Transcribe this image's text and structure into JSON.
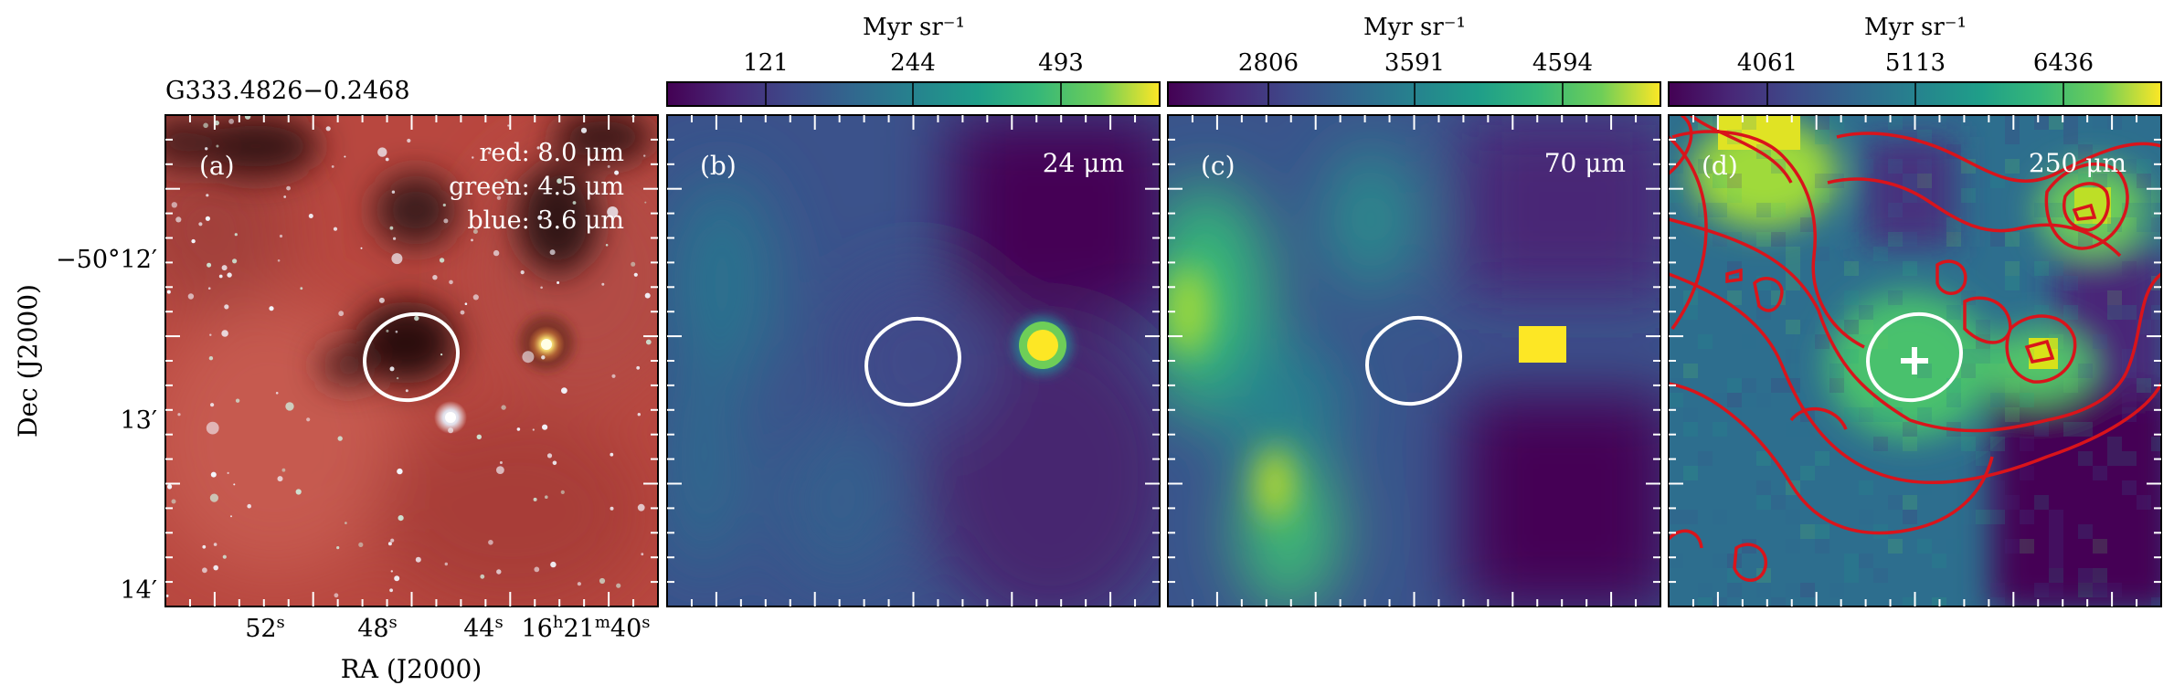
{
  "figure": {
    "source_name": "G333.4826−0.2468",
    "xlabel": "RA (J2000)",
    "ylabel": "Dec (J2000)",
    "ra_ticks": [
      "52",
      "48",
      "44",
      "16h21m40"
    ],
    "ra_tick_parts": [
      {
        "main": "52",
        "sup": "s"
      },
      {
        "main": "48",
        "sup": "s"
      },
      {
        "main": "44",
        "sup": "s"
      },
      {
        "main": "16",
        "sup": "h",
        "main2": "21",
        "sup2": "m",
        "main3": "40",
        "sup3": "s"
      }
    ],
    "dec_ticks": [
      "−50°12′",
      "13′",
      "14′"
    ]
  },
  "panels": [
    {
      "label": "(a)",
      "legend": [
        "red: 8.0 μm",
        "green: 4.5 μm",
        "blue: 3.6 μm"
      ]
    },
    {
      "label": "(b)",
      "wavelength": "24 μm",
      "colorbar": {
        "unit": "Myr sr⁻¹",
        "ticks": [
          "121",
          "244",
          "493"
        ]
      }
    },
    {
      "label": "(c)",
      "wavelength": "70 μm",
      "colorbar": {
        "unit": "Myr sr⁻¹",
        "ticks": [
          "2806",
          "3591",
          "4594"
        ]
      }
    },
    {
      "label": "(d)",
      "wavelength": "250 μm",
      "colorbar": {
        "unit": "Myr sr⁻¹",
        "ticks": [
          "4061",
          "5113",
          "6436"
        ]
      }
    }
  ],
  "colors": {
    "viridis_low": "#440154",
    "viridis_mid": "#21918c",
    "viridis_high": "#fde725",
    "contour": "#d9141b",
    "ellipse": "#ffffff"
  }
}
